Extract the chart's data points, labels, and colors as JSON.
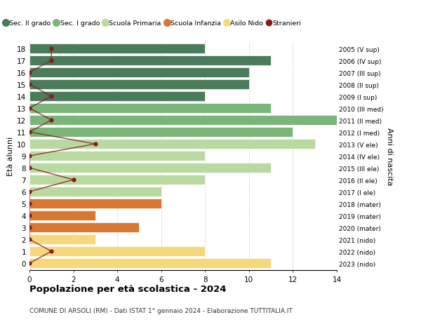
{
  "ages": [
    18,
    17,
    16,
    15,
    14,
    13,
    12,
    11,
    10,
    9,
    8,
    7,
    6,
    5,
    4,
    3,
    2,
    1,
    0
  ],
  "years": [
    "2005 (V sup)",
    "2006 (IV sup)",
    "2007 (III sup)",
    "2008 (II sup)",
    "2009 (I sup)",
    "2010 (III med)",
    "2011 (II med)",
    "2012 (I med)",
    "2013 (V ele)",
    "2014 (IV ele)",
    "2015 (III ele)",
    "2016 (II ele)",
    "2017 (I ele)",
    "2018 (mater)",
    "2019 (mater)",
    "2020 (mater)",
    "2021 (nido)",
    "2022 (nido)",
    "2023 (nido)"
  ],
  "bar_values": [
    8,
    11,
    10,
    10,
    8,
    11,
    14,
    12,
    13,
    8,
    11,
    8,
    6,
    6,
    3,
    5,
    3,
    8,
    11
  ],
  "bar_colors": [
    "#4a7c59",
    "#4a7c59",
    "#4a7c59",
    "#4a7c59",
    "#4a7c59",
    "#7ab57a",
    "#7ab57a",
    "#7ab57a",
    "#b8d9a0",
    "#b8d9a0",
    "#b8d9a0",
    "#b8d9a0",
    "#b8d9a0",
    "#d97630",
    "#d97630",
    "#d97630",
    "#f5d87a",
    "#f5d87a",
    "#f5d87a"
  ],
  "stranieri_values": [
    1,
    1,
    0,
    0,
    1,
    0,
    1,
    0,
    3,
    0,
    0,
    2,
    0,
    0,
    0,
    0,
    0,
    1,
    0
  ],
  "stranieri_color": "#8b1a1a",
  "title": "Popolazione per età scolastica - 2024",
  "subtitle": "COMUNE DI ARSOLI (RM) - Dati ISTAT 1° gennaio 2024 - Elaborazione TUTTITALIA.IT",
  "ylabel": "Età alunni",
  "right_label": "Anni di nascita",
  "xlim": [
    0,
    14
  ],
  "xticks": [
    0,
    2,
    4,
    6,
    8,
    10,
    12,
    14
  ],
  "legend_labels": [
    "Sec. II grado",
    "Sec. I grado",
    "Scuola Primaria",
    "Scuola Infanzia",
    "Asilo Nido",
    "Stranieri"
  ],
  "legend_colors": [
    "#4a7c59",
    "#7ab57a",
    "#b8d9a0",
    "#d97630",
    "#f5d87a",
    "#8b1a1a"
  ],
  "background_color": "#ffffff",
  "grid_color": "#cccccc"
}
